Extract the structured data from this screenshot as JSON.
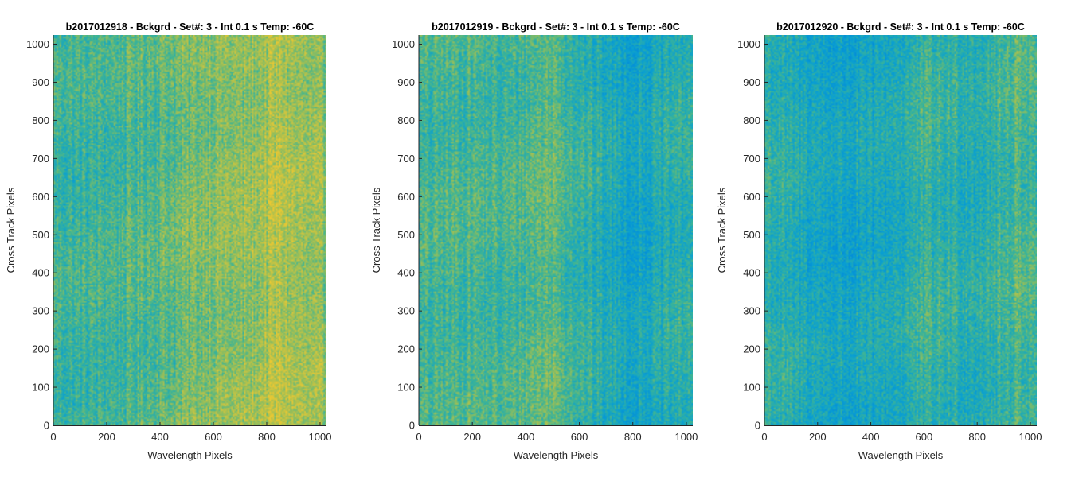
{
  "chart_data": [
    {
      "type": "heatmap",
      "title": "b2017012918 - Bckgrd - Set#: 3 - Int 0.1 s Temp: -60C",
      "xlabel": "Wavelength Pixels",
      "ylabel": "Cross Track Pixels",
      "xlim": [
        0,
        1024
      ],
      "ylim": [
        0,
        1024
      ],
      "xticks": [
        0,
        200,
        400,
        600,
        800,
        1000
      ],
      "yticks": [
        0,
        100,
        200,
        300,
        400,
        500,
        600,
        700,
        800,
        900,
        1000
      ],
      "colormap": "parula",
      "column_profile": {
        "x": [
          0,
          100,
          200,
          300,
          400,
          500,
          600,
          700,
          800,
          850,
          900,
          1000,
          1024
        ],
        "level": [
          0.55,
          0.52,
          0.55,
          0.58,
          0.62,
          0.66,
          0.74,
          0.72,
          0.8,
          0.85,
          0.78,
          0.72,
          0.72
        ]
      }
    },
    {
      "type": "heatmap",
      "title": "b2017012919 - Bckgrd - Set#: 3 - Int 0.1 s Temp: -60C",
      "xlabel": "Wavelength Pixels",
      "ylabel": "Cross Track Pixels",
      "xlim": [
        0,
        1024
      ],
      "ylim": [
        0,
        1024
      ],
      "xticks": [
        0,
        200,
        400,
        600,
        800,
        1000
      ],
      "yticks": [
        0,
        100,
        200,
        300,
        400,
        500,
        600,
        700,
        800,
        900,
        1000
      ],
      "colormap": "parula",
      "column_profile": {
        "x": [
          0,
          100,
          200,
          300,
          400,
          500,
          600,
          700,
          800,
          900,
          1000,
          1024
        ],
        "level": [
          0.52,
          0.55,
          0.58,
          0.52,
          0.58,
          0.64,
          0.5,
          0.42,
          0.36,
          0.4,
          0.48,
          0.5
        ]
      }
    },
    {
      "type": "heatmap",
      "title": "b2017012920 - Bckgrd - Set#: 3 - Int 0.1 s Temp: -60C",
      "xlabel": "Wavelength Pixels",
      "ylabel": "Cross Track Pixels",
      "xlim": [
        0,
        1024
      ],
      "ylim": [
        0,
        1024
      ],
      "xticks": [
        0,
        200,
        400,
        600,
        800,
        1000
      ],
      "yticks": [
        0,
        100,
        200,
        300,
        400,
        500,
        600,
        700,
        800,
        900,
        1000
      ],
      "colormap": "parula",
      "column_profile": {
        "x": [
          0,
          100,
          200,
          300,
          400,
          500,
          600,
          700,
          800,
          900,
          950,
          1000,
          1024
        ],
        "level": [
          0.5,
          0.42,
          0.38,
          0.34,
          0.36,
          0.42,
          0.5,
          0.48,
          0.46,
          0.52,
          0.6,
          0.56,
          0.55
        ]
      }
    }
  ]
}
